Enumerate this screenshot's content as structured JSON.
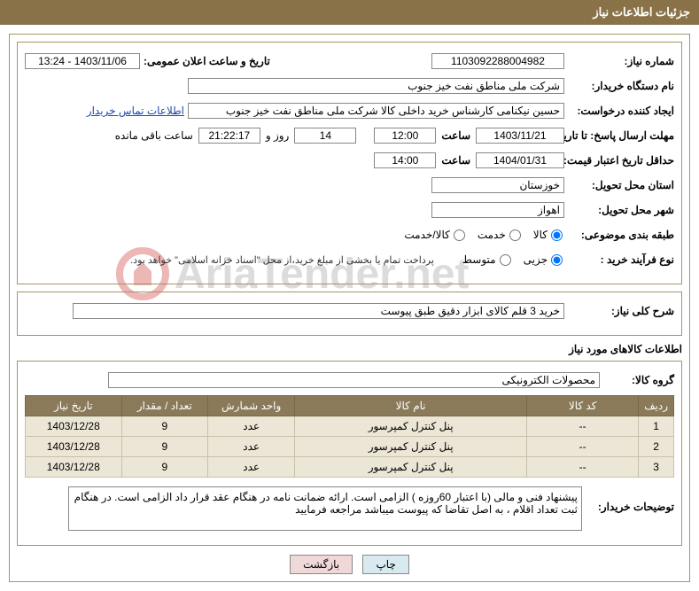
{
  "header": {
    "title": "جزئیات اطلاعات نیاز"
  },
  "form": {
    "need_number": {
      "label": "شماره نیاز:",
      "value": "1103092288004982"
    },
    "announce_datetime": {
      "label": "تاریخ و ساعت اعلان عمومی:",
      "value": "1403/11/06 - 13:24"
    },
    "buyer_org": {
      "label": "نام دستگاه خریدار:",
      "value": "شرکت ملی مناطق نفت خیز جنوب"
    },
    "requester": {
      "label": "ایجاد کننده درخواست:",
      "value": "حسین  نیکنامی  کارشناس خرید داخلی کالا شرکت ملی مناطق نفت خیز جنوب",
      "contact_link": "اطلاعات تماس خریدار"
    },
    "response_deadline": {
      "label": "مهلت ارسال پاسخ: تا تاریخ:",
      "date": "1403/11/21",
      "time_label": "ساعت",
      "time": "12:00",
      "days_remaining": "14",
      "days_suffix": "روز و",
      "countdown": "21:22:17",
      "remaining_suffix": "ساعت باقی مانده"
    },
    "price_validity": {
      "label": "حداقل تاریخ اعتبار قیمت: تا تاریخ:",
      "date": "1404/01/31",
      "time_label": "ساعت",
      "time": "14:00"
    },
    "delivery_province": {
      "label": "استان محل تحویل:",
      "value": "خوزستان"
    },
    "delivery_city": {
      "label": "شهر محل تحویل:",
      "value": "اهواز"
    },
    "classification": {
      "label": "طبقه بندی موضوعی:",
      "options": {
        "good": "کالا",
        "service": "خدمت",
        "both": "کالا/خدمت"
      },
      "selected": "good"
    },
    "buy_type": {
      "label": "نوع فرآیند خرید :",
      "options": {
        "partial": "جزیی",
        "medium": "متوسط"
      },
      "selected": "partial",
      "note": "پرداخت تمام یا بخشی از مبلغ خرید،از محل \"اسناد خزانه اسلامی\" خواهد بود."
    }
  },
  "description": {
    "label": "شرح کلی نیاز:",
    "value": "خرید 3 قلم کالای ابزار دقیق طبق پیوست"
  },
  "goods_section_title": "اطلاعات کالاهای مورد نیاز",
  "goods_group": {
    "label": "گروه کالا:",
    "value": "محصولات الکترونیکی"
  },
  "table": {
    "columns": [
      "ردیف",
      "کد کالا",
      "نام کالا",
      "واحد شمارش",
      "تعداد / مقدار",
      "تاریخ نیاز"
    ],
    "col_widths": [
      "40px",
      "130px",
      "270px",
      "100px",
      "100px",
      "110px"
    ],
    "rows": [
      [
        "1",
        "--",
        "پنل کنترل کمپرسور",
        "عدد",
        "9",
        "1403/12/28"
      ],
      [
        "2",
        "--",
        "پنل کنترل کمپرسور",
        "عدد",
        "9",
        "1403/12/28"
      ],
      [
        "3",
        "--",
        "پنل کنترل کمپرسور",
        "عدد",
        "9",
        "1403/12/28"
      ]
    ]
  },
  "buyer_note": {
    "label": "توضیحات خریدار:",
    "value": "پیشنهاد فنی و مالی (با اعتبار 60روزه ) الزامی است. ارائه ضمانت نامه در هنگام عقد قرار داد الزامی است. در هنگام ثبت تعداد اقلام ،  به اصل تقاضا که پیوست میباشد مراجعه  فرمایید"
  },
  "buttons": {
    "print": "چاپ",
    "back": "بازگشت"
  },
  "watermark": {
    "text": "AriaTender.net"
  },
  "colors": {
    "header_bg": "#8a7248",
    "border": "#a69466",
    "th_bg": "#8a7a5a",
    "td_bg": "#ece6d6",
    "link": "#1a4aa8"
  }
}
